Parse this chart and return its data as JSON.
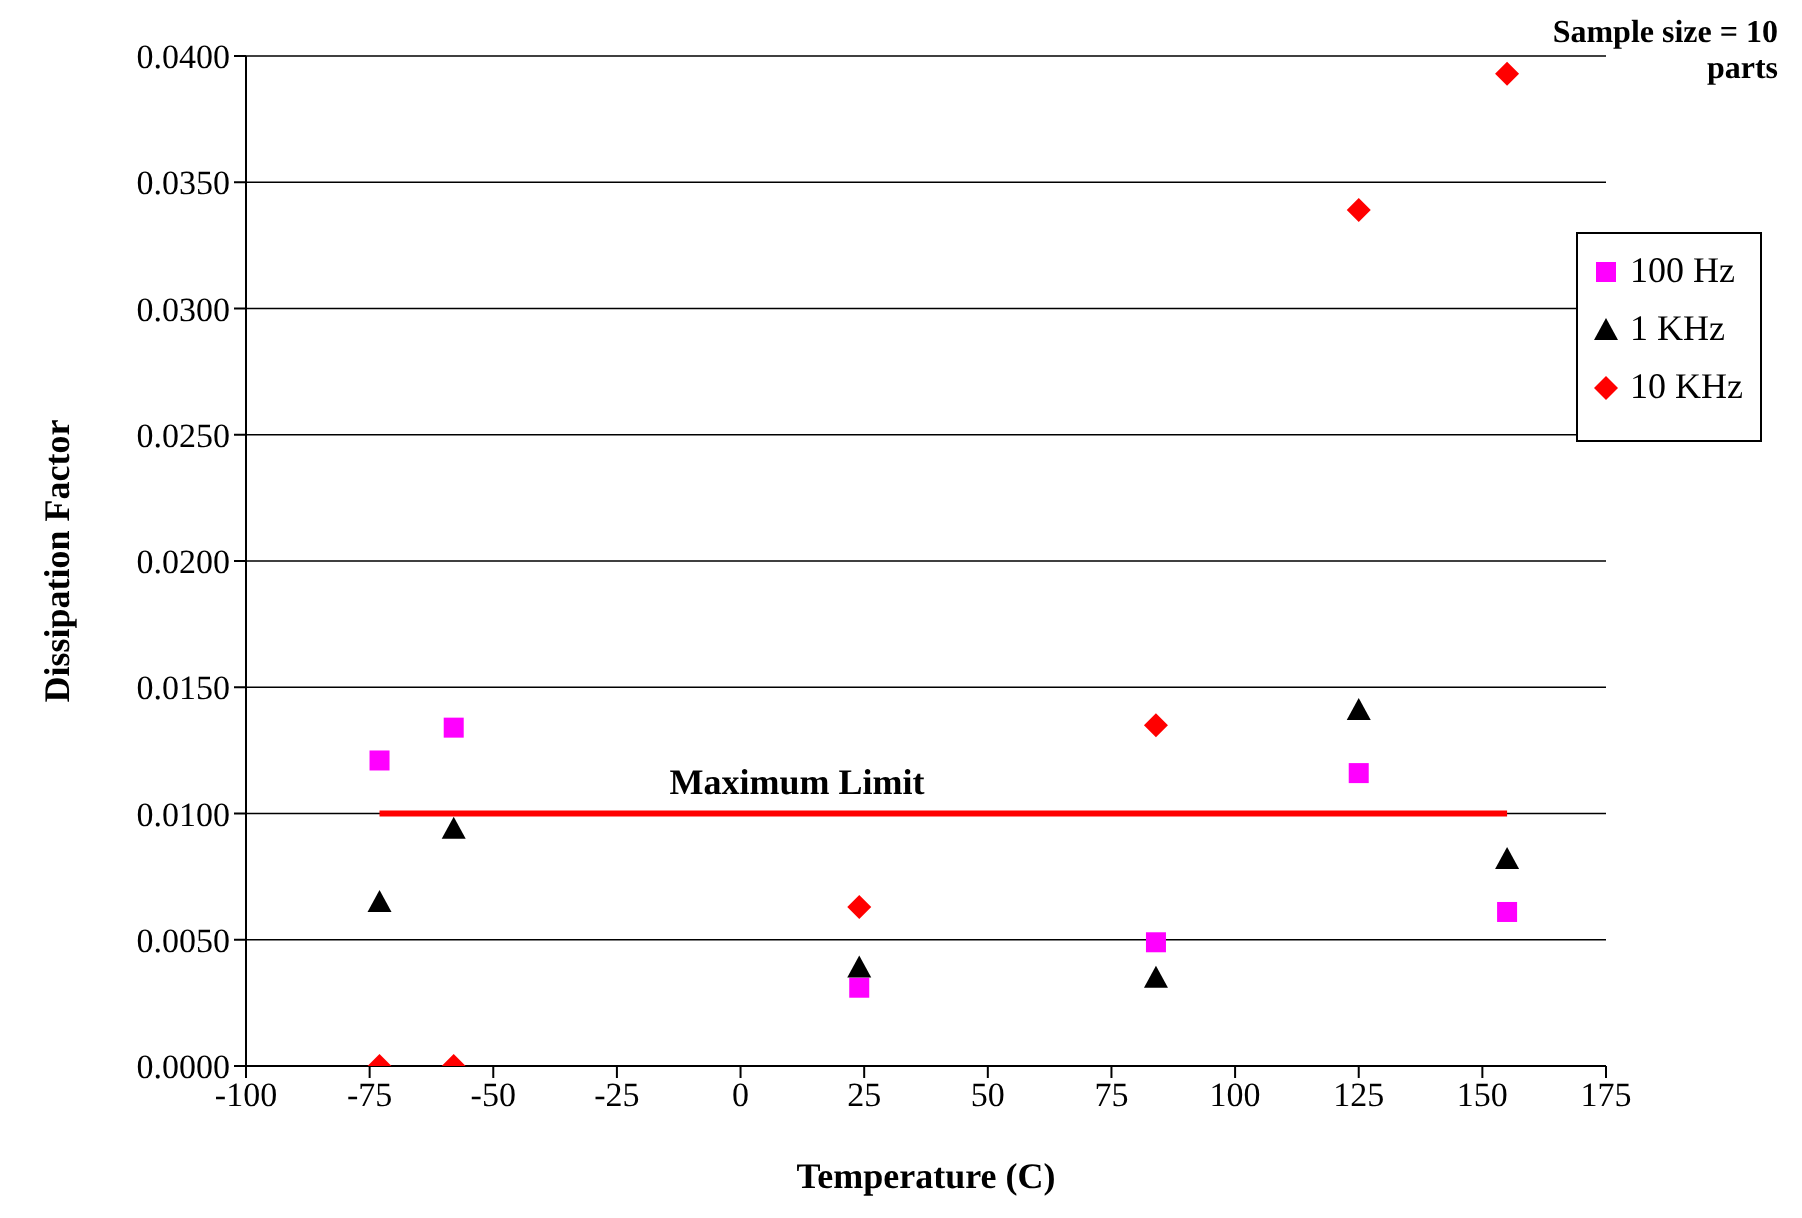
{
  "chart_data": {
    "type": "scatter",
    "xlabel": "Temperature (C)",
    "ylabel": "Dissipation Factor",
    "annotations": [
      "Sample size = 10 parts"
    ],
    "xlim": [
      -100,
      175
    ],
    "xticks": [
      -100,
      -75,
      -50,
      -25,
      0,
      25,
      50,
      75,
      100,
      125,
      150,
      175
    ],
    "ylim": [
      0,
      0.04
    ],
    "yticks": [
      {
        "value": 0,
        "label": "0.0000"
      },
      {
        "value": 0.005,
        "label": "0.0050"
      },
      {
        "value": 0.01,
        "label": "0.0100"
      },
      {
        "value": 0.015,
        "label": "0.0150"
      },
      {
        "value": 0.02,
        "label": "0.0200"
      },
      {
        "value": 0.025,
        "label": "0.0250"
      },
      {
        "value": 0.03,
        "label": "0.0300"
      },
      {
        "value": 0.035,
        "label": "0.0350"
      },
      {
        "value": 0.04,
        "label": "0.0400"
      }
    ],
    "grid": "y",
    "legend": "right",
    "x": [
      -73,
      -58,
      24,
      84,
      125,
      155
    ],
    "series": [
      {
        "name": "100 Hz",
        "color": "#ff00ff",
        "marker": "square",
        "values": [
          0.0121,
          0.0134,
          0.0031,
          0.0049,
          0.0116,
          0.0061
        ]
      },
      {
        "name": "1 KHz",
        "color": "#000000",
        "marker": "triangle",
        "values": [
          0.0065,
          0.0094,
          0.0039,
          0.0035,
          0.0141,
          0.0082
        ]
      },
      {
        "name": "10 KHz",
        "color": "#ff0000",
        "marker": "diamond",
        "values": [
          0,
          0,
          0.0063,
          0.0135,
          0.0339,
          0.0393
        ]
      },
      {
        "name": "Maximum Limit",
        "type": "line",
        "color": "#ff0000",
        "x": [
          -73,
          155
        ],
        "values": [
          0.01,
          0.01
        ]
      }
    ]
  }
}
